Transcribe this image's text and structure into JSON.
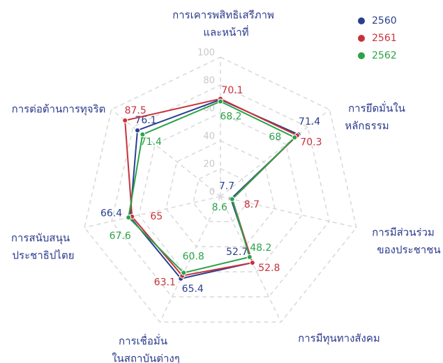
{
  "chart_data": {
    "type": "radar",
    "categories": [
      [
        "การเคารพสิทธิเสรีภาพ",
        "และหน้าที่"
      ],
      [
        "การยึดมั่นใน",
        "หลักธรรม"
      ],
      [
        "การมีส่วนร่วม",
        "ของประชาชน"
      ],
      [
        "การมีทุนทางสังคม"
      ],
      [
        "การเชื่อมั่น",
        "ในสถาบันต่างๆ"
      ],
      [
        "การสนับสนุน",
        "ประชาธิปไตย"
      ],
      [
        "การต่อต้านการทุจริต"
      ]
    ],
    "series": [
      {
        "name": "2560",
        "color": "#2a3f8f",
        "values": [
          69.5,
          71.4,
          7.7,
          52.7,
          65.4,
          66.4,
          76.1
        ],
        "value_labels": [
          null,
          "71.4",
          "7.7",
          "52.7",
          "65.4",
          "66.4",
          "76.1"
        ]
      },
      {
        "name": "2561",
        "color": "#c8313a",
        "values": [
          70.1,
          70.3,
          8.7,
          52.8,
          63.1,
          65,
          87.5
        ]
      },
      {
        "name": "2562",
        "color": "#2aa348",
        "values": [
          68.2,
          68,
          8.6,
          48.2,
          60.8,
          67.6,
          71.4
        ]
      }
    ],
    "ylim": [
      0,
      100
    ],
    "yticks": [
      0,
      20,
      40,
      60,
      80,
      100
    ],
    "grid": true,
    "legend": "top-right"
  }
}
